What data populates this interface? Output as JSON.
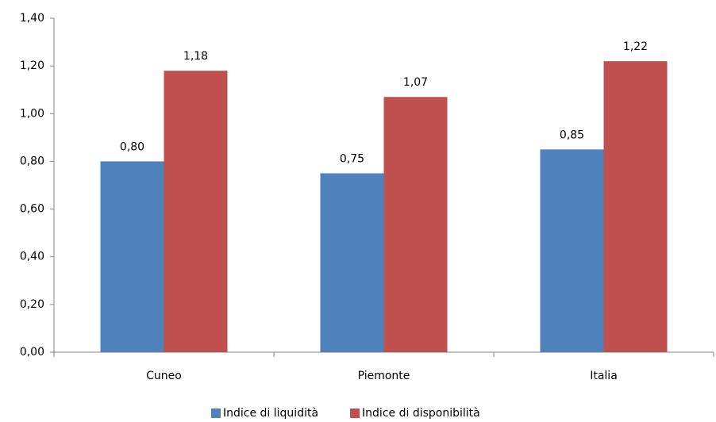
{
  "chart_data": {
    "type": "bar",
    "categories": [
      "Cuneo",
      "Piemonte",
      "Italia"
    ],
    "series": [
      {
        "name": "Indice di liquidità",
        "color": "#4f81bd",
        "values": [
          0.8,
          0.75,
          0.85
        ],
        "value_labels": [
          "0,80",
          "0,75",
          "0,85"
        ]
      },
      {
        "name": "Indice di disponibilità",
        "color": "#c0504d",
        "values": [
          1.18,
          1.07,
          1.22
        ],
        "value_labels": [
          "1,18",
          "1,07",
          "1,22"
        ]
      }
    ],
    "ylim": [
      0,
      1.4
    ],
    "yticks": [
      {
        "value": 0,
        "label": "0,00"
      },
      {
        "value": 0.2,
        "label": "0,20"
      },
      {
        "value": 0.4,
        "label": "0,40"
      },
      {
        "value": 0.6,
        "label": "0,60"
      },
      {
        "value": 0.8,
        "label": "0,80"
      },
      {
        "value": 1.0,
        "label": "1,00"
      },
      {
        "value": 1.2,
        "label": "1,20"
      },
      {
        "value": 1.4,
        "label": "1,40"
      }
    ],
    "grid": false,
    "legend": "bottom"
  }
}
